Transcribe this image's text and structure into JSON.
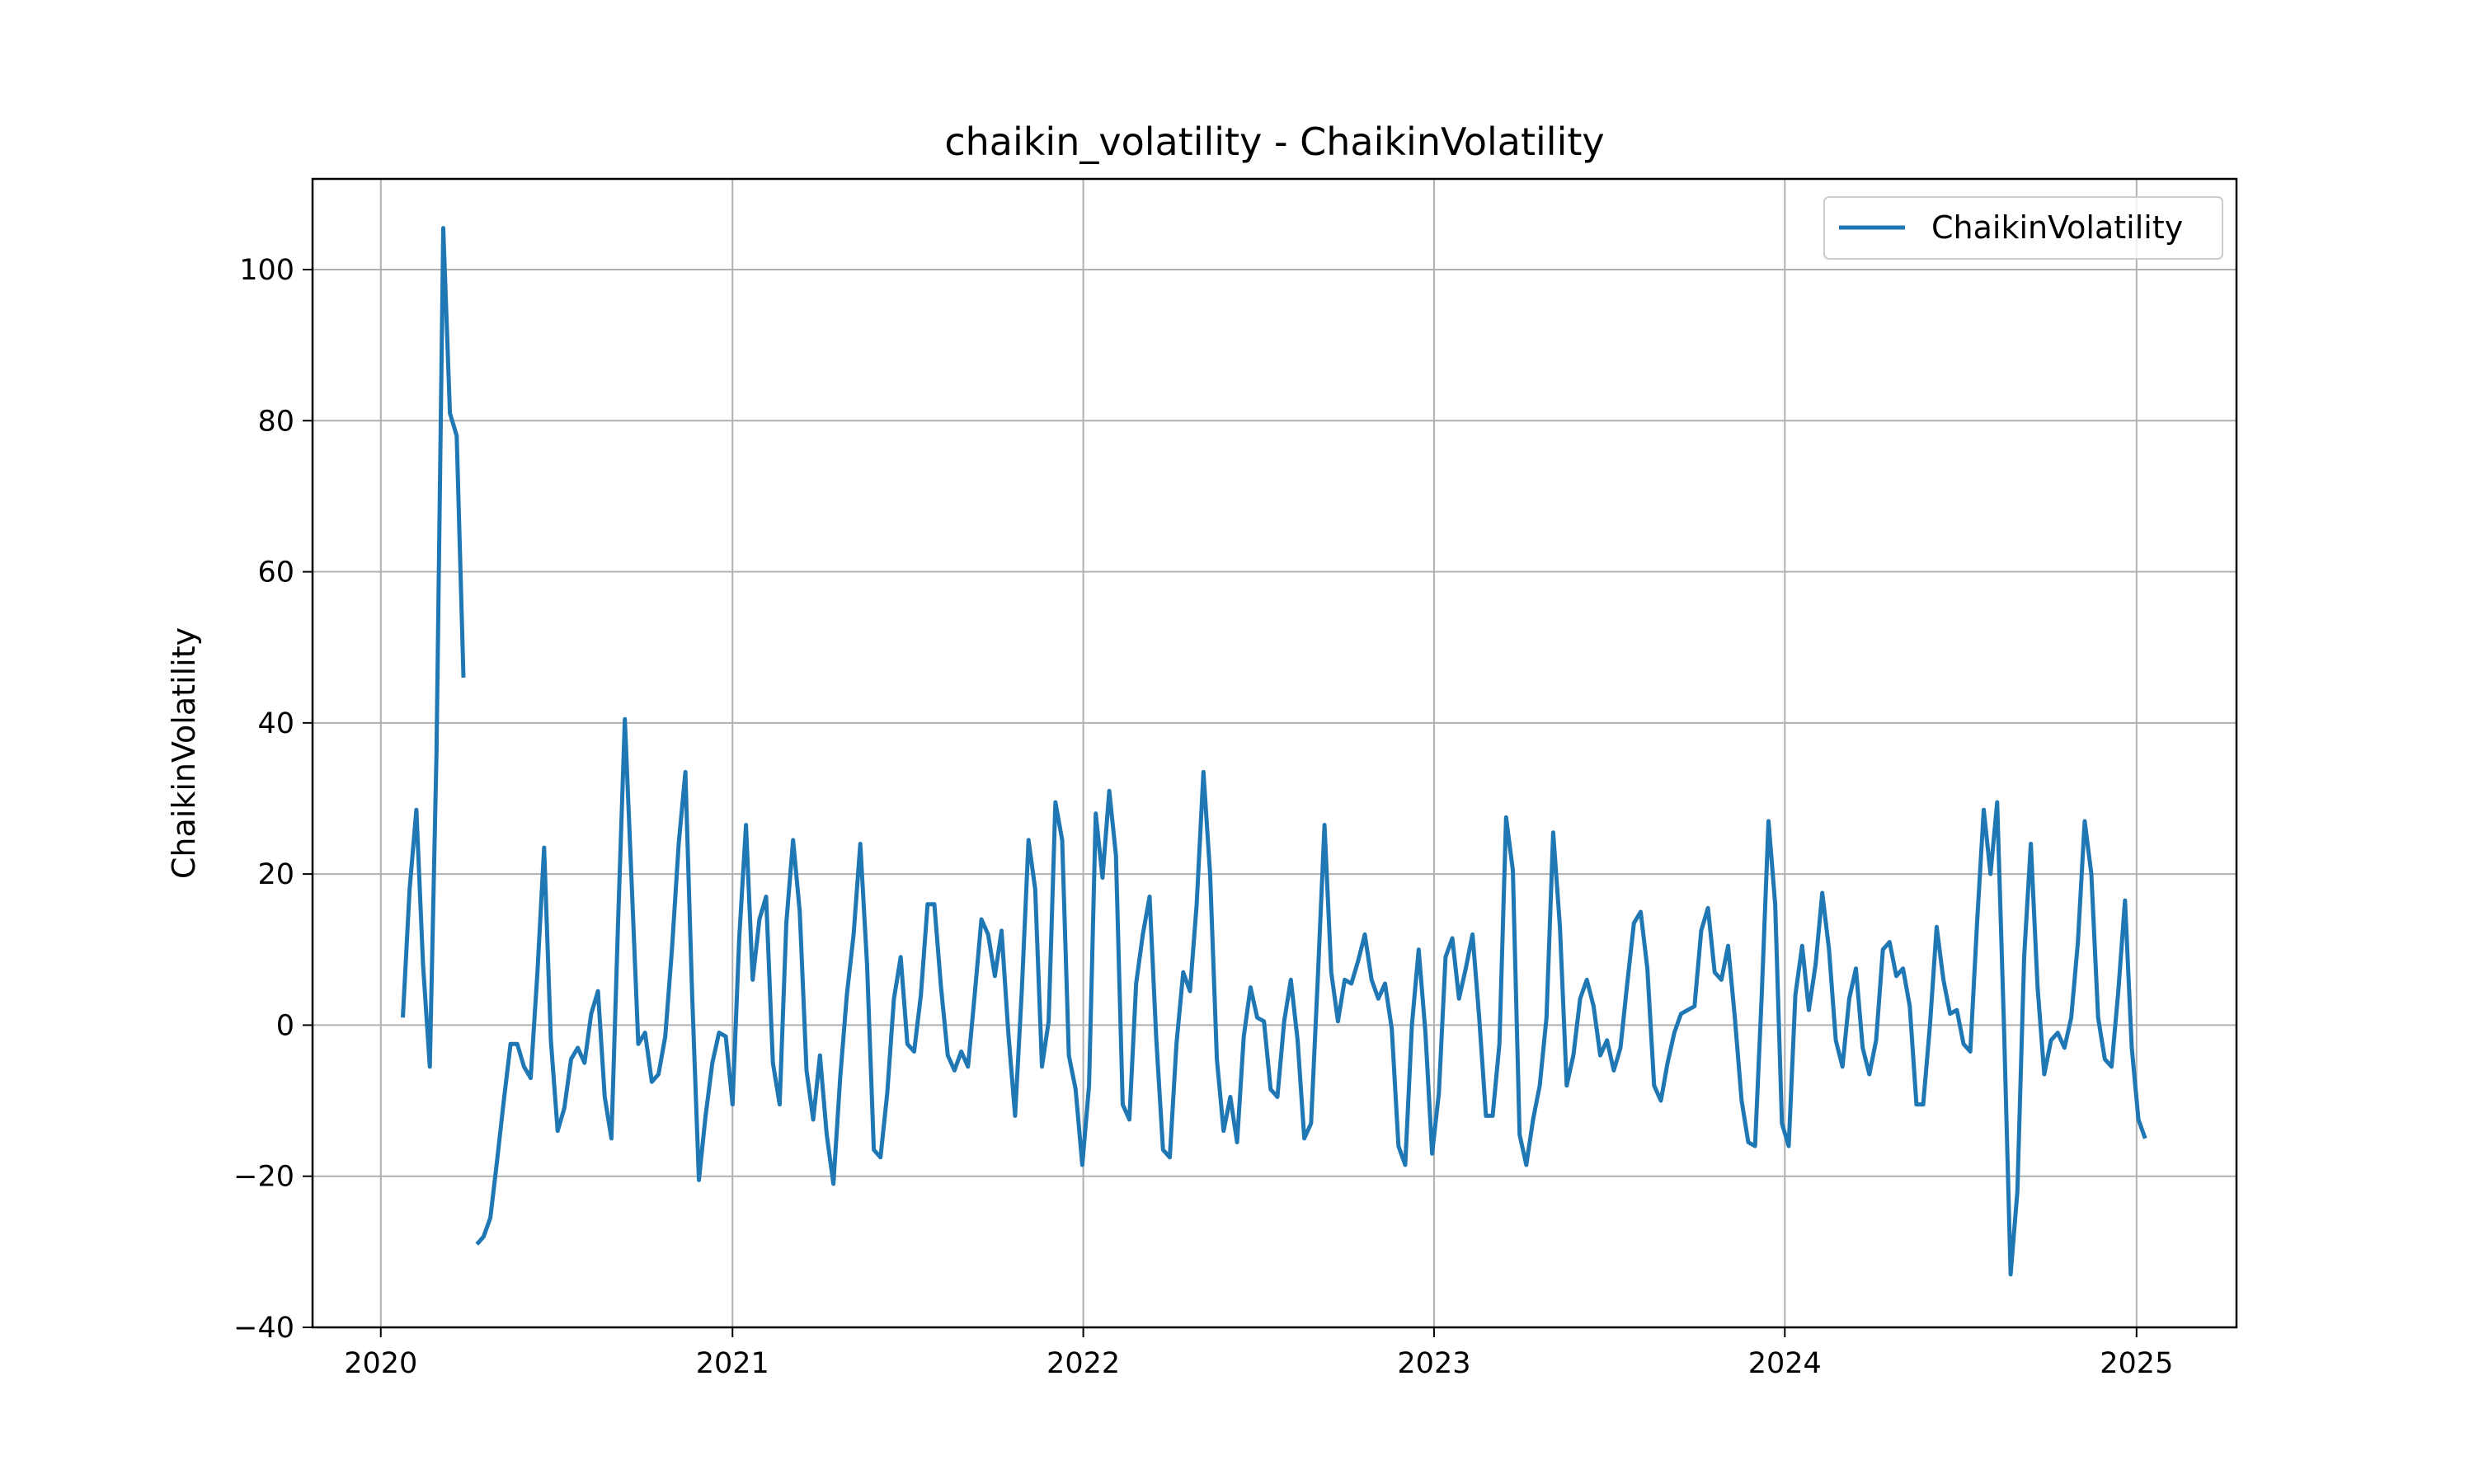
{
  "chart_data": {
    "type": "line",
    "title": "chaikin_volatility - ChaikinVolatility",
    "xlabel": "",
    "ylabel": "ChaikinVolatility",
    "xlim": [
      "2019-10-22",
      "2025-04-15"
    ],
    "ylim": [
      -40,
      112
    ],
    "x_ticks": [
      "2020",
      "2021",
      "2022",
      "2023",
      "2024",
      "2025"
    ],
    "y_ticks": [
      100,
      80,
      60,
      40,
      20,
      0,
      -20,
      -40
    ],
    "y_tick_labels": [
      "100",
      "80",
      "60",
      "40",
      "20",
      "0",
      "−20",
      "−40"
    ],
    "grid": true,
    "legend": {
      "position": "top-right"
    },
    "line_color": "#1f77b4",
    "series": [
      {
        "name": "ChaikinVolatility",
        "points": [
          [
            "2020-01-24",
            1
          ],
          [
            "2020-01-31",
            18
          ],
          [
            "2020-02-07",
            28.5
          ],
          [
            "2020-02-14",
            8
          ],
          [
            "2020-02-21",
            -5.5
          ],
          [
            "2020-02-28",
            36
          ],
          [
            "2020-03-06",
            105.5
          ],
          [
            "2020-03-13",
            81
          ],
          [
            "2020-03-20",
            78
          ],
          [
            "2020-03-27",
            46
          ],
          [
            "2020-04-03",
            null
          ],
          [
            "2020-04-10",
            -29
          ],
          [
            "2020-04-17",
            -28
          ],
          [
            "2020-04-24",
            -25.5
          ],
          [
            "2020-05-01",
            -18
          ],
          [
            "2020-05-08",
            -10
          ],
          [
            "2020-05-15",
            -2.5
          ],
          [
            "2020-05-22",
            -2.5
          ],
          [
            "2020-05-29",
            -5.5
          ],
          [
            "2020-06-05",
            -7
          ],
          [
            "2020-06-12",
            7
          ],
          [
            "2020-06-19",
            23.5
          ],
          [
            "2020-06-26",
            -2
          ],
          [
            "2020-07-03",
            -14
          ],
          [
            "2020-07-10",
            -11
          ],
          [
            "2020-07-17",
            -4.5
          ],
          [
            "2020-07-24",
            -3
          ],
          [
            "2020-07-31",
            -5
          ],
          [
            "2020-08-07",
            1.5
          ],
          [
            "2020-08-14",
            4.5
          ],
          [
            "2020-08-21",
            -9.5
          ],
          [
            "2020-08-28",
            -15
          ],
          [
            "2020-09-04",
            14
          ],
          [
            "2020-09-11",
            40.5
          ],
          [
            "2020-09-18",
            19
          ],
          [
            "2020-09-25",
            -2.5
          ],
          [
            "2020-10-02",
            -1
          ],
          [
            "2020-10-09",
            -7.5
          ],
          [
            "2020-10-16",
            -6.5
          ],
          [
            "2020-10-23",
            -1.5
          ],
          [
            "2020-10-30",
            10
          ],
          [
            "2020-11-06",
            24
          ],
          [
            "2020-11-13",
            33.5
          ],
          [
            "2020-11-20",
            4
          ],
          [
            "2020-11-27",
            -20.5
          ],
          [
            "2020-12-04",
            -12
          ],
          [
            "2020-12-11",
            -5
          ],
          [
            "2020-12-18",
            -1
          ],
          [
            "2020-12-25",
            -1.5
          ],
          [
            "2021-01-01",
            -10.5
          ],
          [
            "2021-01-08",
            11.5
          ],
          [
            "2021-01-15",
            26.5
          ],
          [
            "2021-01-22",
            6
          ],
          [
            "2021-01-29",
            14
          ],
          [
            "2021-02-05",
            17
          ],
          [
            "2021-02-12",
            -5
          ],
          [
            "2021-02-19",
            -10.5
          ],
          [
            "2021-02-26",
            13.5
          ],
          [
            "2021-03-05",
            24.5
          ],
          [
            "2021-03-12",
            15
          ],
          [
            "2021-03-19",
            -6
          ],
          [
            "2021-03-26",
            -12.5
          ],
          [
            "2021-04-02",
            -4
          ],
          [
            "2021-04-09",
            -14.5
          ],
          [
            "2021-04-16",
            -21
          ],
          [
            "2021-04-23",
            -7
          ],
          [
            "2021-04-30",
            4
          ],
          [
            "2021-05-07",
            12
          ],
          [
            "2021-05-14",
            24
          ],
          [
            "2021-05-21",
            8
          ],
          [
            "2021-05-28",
            -16.5
          ],
          [
            "2021-06-04",
            -17.5
          ],
          [
            "2021-06-11",
            -9
          ],
          [
            "2021-06-18",
            3.5
          ],
          [
            "2021-06-25",
            9
          ],
          [
            "2021-07-02",
            -2.5
          ],
          [
            "2021-07-09",
            -3.5
          ],
          [
            "2021-07-16",
            4
          ],
          [
            "2021-07-23",
            16
          ],
          [
            "2021-07-30",
            16
          ],
          [
            "2021-08-06",
            5
          ],
          [
            "2021-08-13",
            -4
          ],
          [
            "2021-08-20",
            -6
          ],
          [
            "2021-08-27",
            -3.5
          ],
          [
            "2021-09-03",
            -5.5
          ],
          [
            "2021-09-10",
            4
          ],
          [
            "2021-09-17",
            14
          ],
          [
            "2021-09-24",
            12
          ],
          [
            "2021-10-01",
            6.5
          ],
          [
            "2021-10-08",
            12.5
          ],
          [
            "2021-10-15",
            -1
          ],
          [
            "2021-10-22",
            -12
          ],
          [
            "2021-10-29",
            4.5
          ],
          [
            "2021-11-05",
            24.5
          ],
          [
            "2021-11-12",
            18
          ],
          [
            "2021-11-19",
            -5.5
          ],
          [
            "2021-11-26",
            0.5
          ],
          [
            "2021-12-03",
            29.5
          ],
          [
            "2021-12-10",
            24.5
          ],
          [
            "2021-12-17",
            -4
          ],
          [
            "2021-12-24",
            -8.5
          ],
          [
            "2021-12-31",
            -18.5
          ],
          [
            "2022-01-07",
            -8
          ],
          [
            "2022-01-14",
            28
          ],
          [
            "2022-01-21",
            19.5
          ],
          [
            "2022-01-28",
            31
          ],
          [
            "2022-02-04",
            22.5
          ],
          [
            "2022-02-11",
            -10.5
          ],
          [
            "2022-02-18",
            -12.5
          ],
          [
            "2022-02-25",
            5.5
          ],
          [
            "2022-03-04",
            12
          ],
          [
            "2022-03-11",
            17
          ],
          [
            "2022-03-18",
            -2
          ],
          [
            "2022-03-25",
            -16.5
          ],
          [
            "2022-04-01",
            -17.5
          ],
          [
            "2022-04-08",
            -2.5
          ],
          [
            "2022-04-15",
            7
          ],
          [
            "2022-04-22",
            4.5
          ],
          [
            "2022-04-29",
            16
          ],
          [
            "2022-05-06",
            33.5
          ],
          [
            "2022-05-13",
            20
          ],
          [
            "2022-05-20",
            -4.5
          ],
          [
            "2022-05-27",
            -14
          ],
          [
            "2022-06-03",
            -9.5
          ],
          [
            "2022-06-10",
            -15.5
          ],
          [
            "2022-06-17",
            -1.5
          ],
          [
            "2022-06-24",
            5
          ],
          [
            "2022-07-01",
            1
          ],
          [
            "2022-07-08",
            0.5
          ],
          [
            "2022-07-15",
            -8.5
          ],
          [
            "2022-07-22",
            -9.5
          ],
          [
            "2022-07-29",
            0.5
          ],
          [
            "2022-08-05",
            6
          ],
          [
            "2022-08-12",
            -2
          ],
          [
            "2022-08-19",
            -15
          ],
          [
            "2022-08-26",
            -13
          ],
          [
            "2022-09-02",
            6
          ],
          [
            "2022-09-09",
            26.5
          ],
          [
            "2022-09-16",
            7
          ],
          [
            "2022-09-23",
            0.5
          ],
          [
            "2022-09-30",
            6
          ],
          [
            "2022-10-07",
            5.5
          ],
          [
            "2022-10-14",
            8.5
          ],
          [
            "2022-10-21",
            12
          ],
          [
            "2022-10-28",
            6
          ],
          [
            "2022-11-04",
            3.5
          ],
          [
            "2022-11-11",
            5.5
          ],
          [
            "2022-11-18",
            -0.5
          ],
          [
            "2022-11-25",
            -16
          ],
          [
            "2022-12-02",
            -18.5
          ],
          [
            "2022-12-09",
            0
          ],
          [
            "2022-12-16",
            10
          ],
          [
            "2022-12-23",
            -1
          ],
          [
            "2022-12-30",
            -17
          ],
          [
            "2023-01-06",
            -9
          ],
          [
            "2023-01-13",
            9
          ],
          [
            "2023-01-20",
            11.5
          ],
          [
            "2023-01-27",
            3.5
          ],
          [
            "2023-02-03",
            7.5
          ],
          [
            "2023-02-10",
            12
          ],
          [
            "2023-02-17",
            1
          ],
          [
            "2023-02-24",
            -12
          ],
          [
            "2023-03-03",
            -12
          ],
          [
            "2023-03-10",
            -2.5
          ],
          [
            "2023-03-17",
            27.5
          ],
          [
            "2023-03-24",
            20.5
          ],
          [
            "2023-03-31",
            -14.5
          ],
          [
            "2023-04-07",
            -18.5
          ],
          [
            "2023-04-14",
            -12.5
          ],
          [
            "2023-04-21",
            -8
          ],
          [
            "2023-04-28",
            1
          ],
          [
            "2023-05-05",
            25.5
          ],
          [
            "2023-05-12",
            13
          ],
          [
            "2023-05-19",
            -8
          ],
          [
            "2023-05-26",
            -4
          ],
          [
            "2023-06-02",
            3.5
          ],
          [
            "2023-06-09",
            6
          ],
          [
            "2023-06-16",
            2.5
          ],
          [
            "2023-06-23",
            -4
          ],
          [
            "2023-06-30",
            -2
          ],
          [
            "2023-07-07",
            -6
          ],
          [
            "2023-07-14",
            -3
          ],
          [
            "2023-07-21",
            5.5
          ],
          [
            "2023-07-28",
            13.5
          ],
          [
            "2023-08-04",
            15
          ],
          [
            "2023-08-11",
            7.5
          ],
          [
            "2023-08-18",
            -8
          ],
          [
            "2023-08-25",
            -10
          ],
          [
            "2023-09-01",
            -5
          ],
          [
            "2023-09-08",
            -1
          ],
          [
            "2023-09-15",
            1.5
          ],
          [
            "2023-09-22",
            2
          ],
          [
            "2023-09-29",
            2.5
          ],
          [
            "2023-10-06",
            12.5
          ],
          [
            "2023-10-13",
            15.5
          ],
          [
            "2023-10-20",
            7
          ],
          [
            "2023-10-27",
            6
          ],
          [
            "2023-11-03",
            10.5
          ],
          [
            "2023-11-10",
            1
          ],
          [
            "2023-11-17",
            -10
          ],
          [
            "2023-11-24",
            -15.5
          ],
          [
            "2023-12-01",
            -16
          ],
          [
            "2023-12-08",
            4
          ],
          [
            "2023-12-15",
            27
          ],
          [
            "2023-12-22",
            16
          ],
          [
            "2023-12-29",
            -13
          ],
          [
            "2024-01-05",
            -16
          ],
          [
            "2024-01-12",
            4
          ],
          [
            "2024-01-19",
            10.5
          ],
          [
            "2024-01-26",
            2
          ],
          [
            "2024-02-02",
            8
          ],
          [
            "2024-02-09",
            17.5
          ],
          [
            "2024-02-16",
            10
          ],
          [
            "2024-02-23",
            -2
          ],
          [
            "2024-03-01",
            -5.5
          ],
          [
            "2024-03-08",
            3.5
          ],
          [
            "2024-03-15",
            7.5
          ],
          [
            "2024-03-22",
            -3
          ],
          [
            "2024-03-29",
            -6.5
          ],
          [
            "2024-04-05",
            -2
          ],
          [
            "2024-04-12",
            10
          ],
          [
            "2024-04-19",
            11
          ],
          [
            "2024-04-26",
            6.5
          ],
          [
            "2024-05-03",
            7.5
          ],
          [
            "2024-05-10",
            2.5
          ],
          [
            "2024-05-17",
            -10.5
          ],
          [
            "2024-05-24",
            -10.5
          ],
          [
            "2024-05-31",
            0
          ],
          [
            "2024-06-07",
            13
          ],
          [
            "2024-06-14",
            6
          ],
          [
            "2024-06-21",
            1.5
          ],
          [
            "2024-06-28",
            2
          ],
          [
            "2024-07-05",
            -2.5
          ],
          [
            "2024-07-12",
            -3.5
          ],
          [
            "2024-07-19",
            13.5
          ],
          [
            "2024-07-26",
            28.5
          ],
          [
            "2024-08-02",
            20
          ],
          [
            "2024-08-09",
            29.5
          ],
          [
            "2024-08-16",
            0
          ],
          [
            "2024-08-23",
            -33
          ],
          [
            "2024-08-30",
            -22
          ],
          [
            "2024-09-06",
            9
          ],
          [
            "2024-09-13",
            24
          ],
          [
            "2024-09-20",
            5
          ],
          [
            "2024-09-27",
            -6.5
          ],
          [
            "2024-10-04",
            -2
          ],
          [
            "2024-10-11",
            -1
          ],
          [
            "2024-10-18",
            -3
          ],
          [
            "2024-10-25",
            1
          ],
          [
            "2024-11-01",
            11
          ],
          [
            "2024-11-08",
            27
          ],
          [
            "2024-11-15",
            20
          ],
          [
            "2024-11-22",
            1
          ],
          [
            "2024-11-29",
            -4.5
          ],
          [
            "2024-12-06",
            -5.5
          ],
          [
            "2024-12-13",
            4.5
          ],
          [
            "2024-12-20",
            16.5
          ],
          [
            "2024-12-27",
            -3
          ],
          [
            "2025-01-03",
            -12.5
          ],
          [
            "2025-01-10",
            -15
          ]
        ]
      }
    ]
  }
}
